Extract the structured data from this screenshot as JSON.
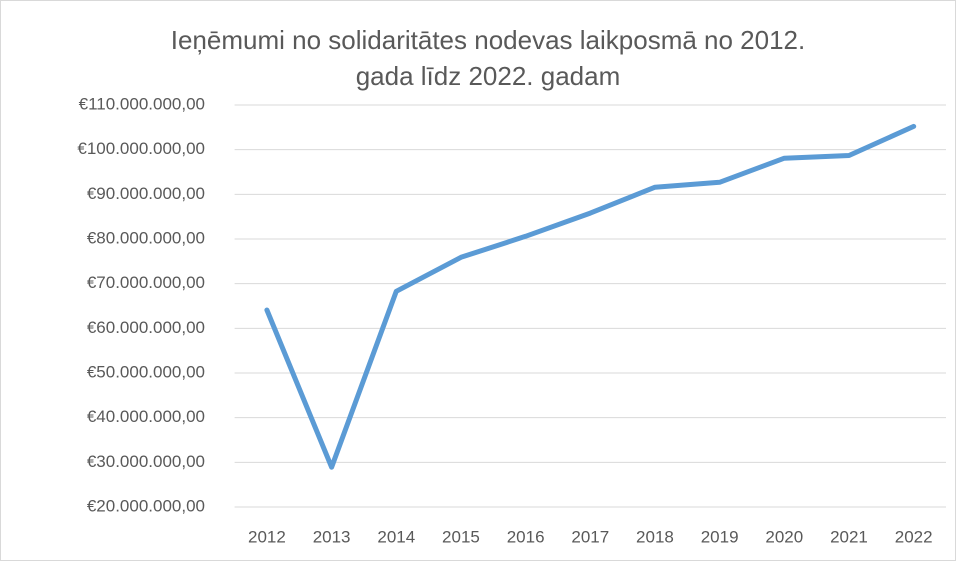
{
  "chart_data": {
    "type": "line",
    "title": "Ieņēmumi no solidaritātes nodevas laikposmā no 2012. gada līdz 2022. gadam",
    "categories": [
      "2012",
      "2013",
      "2014",
      "2015",
      "2016",
      "2017",
      "2018",
      "2019",
      "2020",
      "2021",
      "2022"
    ],
    "series": [
      {
        "color": "#5b9bd5",
        "values": [
          64100000,
          28900000,
          68300000,
          75900000,
          80600000,
          85800000,
          91600000,
          92700000,
          98100000,
          98700000,
          105200000
        ]
      }
    ],
    "ylim": [
      20000000,
      110000000
    ],
    "yticks": [
      {
        "value": 20000000,
        "label": "€20.000.000,00"
      },
      {
        "value": 30000000,
        "label": "€30.000.000,00"
      },
      {
        "value": 40000000,
        "label": "€40.000.000,00"
      },
      {
        "value": 50000000,
        "label": "€50.000.000,00"
      },
      {
        "value": 60000000,
        "label": "€60.000.000,00"
      },
      {
        "value": 70000000,
        "label": "€70.000.000,00"
      },
      {
        "value": 80000000,
        "label": "€80.000.000,00"
      },
      {
        "value": 90000000,
        "label": "€90.000.000,00"
      },
      {
        "value": 100000000,
        "label": "€100.000.000,00"
      },
      {
        "value": 110000000,
        "label": "€110.000.000,00"
      }
    ],
    "grid": true
  }
}
